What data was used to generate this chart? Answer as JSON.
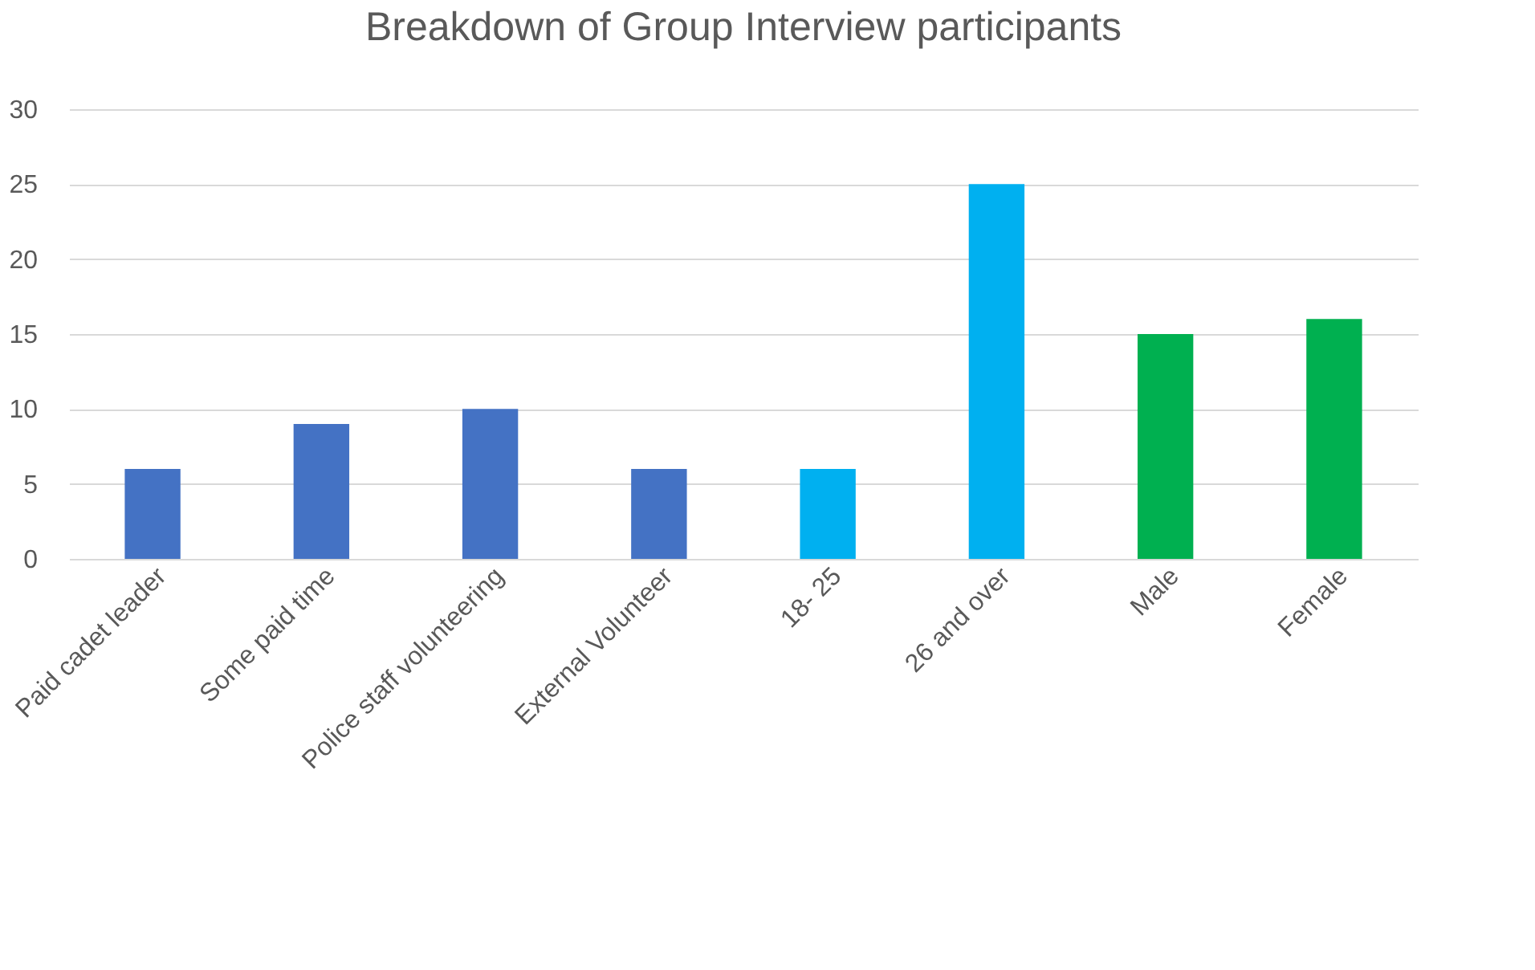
{
  "chart_data": {
    "type": "bar",
    "title": "Breakdown of Group Interview participants",
    "categories": [
      "Paid cadet leader",
      "Some paid time",
      "Police staff volunteering",
      "External Volunteer",
      "18- 25",
      "26 and over",
      "Male",
      "Female"
    ],
    "values": [
      6,
      9,
      10,
      6,
      6,
      25,
      15,
      16
    ],
    "colors": [
      "#4472c4",
      "#4472c4",
      "#4472c4",
      "#4472c4",
      "#00b0f0",
      "#00b0f0",
      "#00b050",
      "#00b050"
    ],
    "ylim": [
      0,
      30
    ],
    "yticks": [
      0,
      5,
      10,
      15,
      20,
      25,
      30
    ],
    "grid": "y"
  }
}
